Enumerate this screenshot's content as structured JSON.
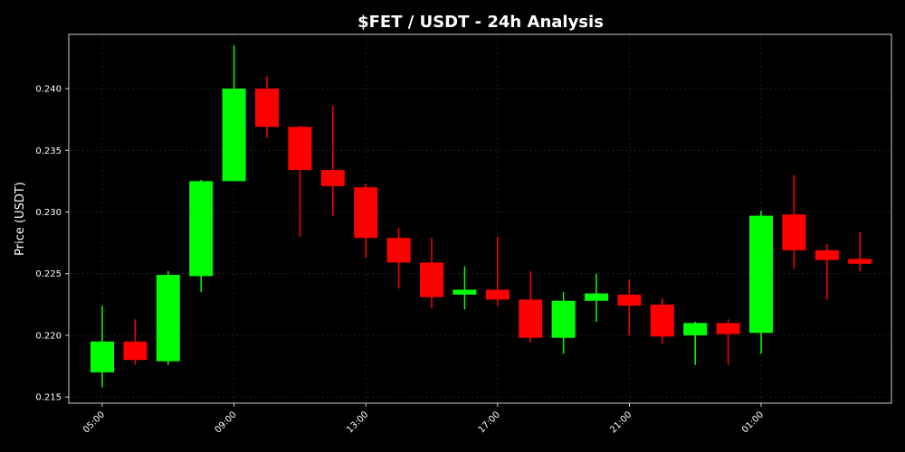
{
  "chart_data": {
    "type": "candlestick",
    "title": "$FET / USDT - 24h Analysis",
    "xlabel": "",
    "ylabel": "Price (USDT)",
    "ylim": [
      0.2145,
      0.2444
    ],
    "yticks": [
      "0.215",
      "0.220",
      "0.225",
      "0.230",
      "0.235",
      "0.240"
    ],
    "ytick_values": [
      0.215,
      0.22,
      0.225,
      0.23,
      0.235,
      0.24
    ],
    "xticks": [
      "05:00",
      "09:00",
      "13:00",
      "17:00",
      "21:00",
      "01:00"
    ],
    "xtick_hours": [
      5,
      9,
      13,
      17,
      21,
      25
    ],
    "grid": true,
    "up_color": "#00ff00",
    "down_color": "#ff0000",
    "background": "#000000",
    "candles": [
      {
        "hour": 5,
        "open": 0.217,
        "high": 0.2224,
        "low": 0.2158,
        "close": 0.2195
      },
      {
        "hour": 6,
        "open": 0.2195,
        "high": 0.2213,
        "low": 0.2176,
        "close": 0.218
      },
      {
        "hour": 7,
        "open": 0.2179,
        "high": 0.2252,
        "low": 0.2176,
        "close": 0.2249
      },
      {
        "hour": 8,
        "open": 0.2248,
        "high": 0.2326,
        "low": 0.2235,
        "close": 0.2325
      },
      {
        "hour": 9,
        "open": 0.2325,
        "high": 0.2435,
        "low": 0.2325,
        "close": 0.24
      },
      {
        "hour": 10,
        "open": 0.24,
        "high": 0.241,
        "low": 0.236,
        "close": 0.2369
      },
      {
        "hour": 11,
        "open": 0.2369,
        "high": 0.237,
        "low": 0.228,
        "close": 0.2334
      },
      {
        "hour": 12,
        "open": 0.2334,
        "high": 0.2386,
        "low": 0.2297,
        "close": 0.2321
      },
      {
        "hour": 13,
        "open": 0.232,
        "high": 0.2323,
        "low": 0.2263,
        "close": 0.2279
      },
      {
        "hour": 14,
        "open": 0.2279,
        "high": 0.2287,
        "low": 0.2238,
        "close": 0.2259
      },
      {
        "hour": 15,
        "open": 0.2259,
        "high": 0.2279,
        "low": 0.2222,
        "close": 0.2231
      },
      {
        "hour": 16,
        "open": 0.2233,
        "high": 0.2256,
        "low": 0.2221,
        "close": 0.2237
      },
      {
        "hour": 17,
        "open": 0.2237,
        "high": 0.228,
        "low": 0.2224,
        "close": 0.2229
      },
      {
        "hour": 18,
        "open": 0.2229,
        "high": 0.2252,
        "low": 0.2194,
        "close": 0.2198
      },
      {
        "hour": 19,
        "open": 0.2198,
        "high": 0.2235,
        "low": 0.2185,
        "close": 0.2228
      },
      {
        "hour": 20,
        "open": 0.2228,
        "high": 0.225,
        "low": 0.2211,
        "close": 0.2234
      },
      {
        "hour": 21,
        "open": 0.2233,
        "high": 0.2245,
        "low": 0.22,
        "close": 0.2224
      },
      {
        "hour": 22,
        "open": 0.2225,
        "high": 0.223,
        "low": 0.2193,
        "close": 0.2199
      },
      {
        "hour": 23,
        "open": 0.22,
        "high": 0.2211,
        "low": 0.2176,
        "close": 0.221
      },
      {
        "hour": 24,
        "open": 0.221,
        "high": 0.2213,
        "low": 0.2176,
        "close": 0.2201
      },
      {
        "hour": 25,
        "open": 0.2202,
        "high": 0.2301,
        "low": 0.2185,
        "close": 0.2297
      },
      {
        "hour": 26,
        "open": 0.2298,
        "high": 0.233,
        "low": 0.2254,
        "close": 0.2269
      },
      {
        "hour": 27,
        "open": 0.2269,
        "high": 0.2274,
        "low": 0.2229,
        "close": 0.2261
      },
      {
        "hour": 28,
        "open": 0.2262,
        "high": 0.2284,
        "low": 0.2252,
        "close": 0.2258
      }
    ]
  }
}
